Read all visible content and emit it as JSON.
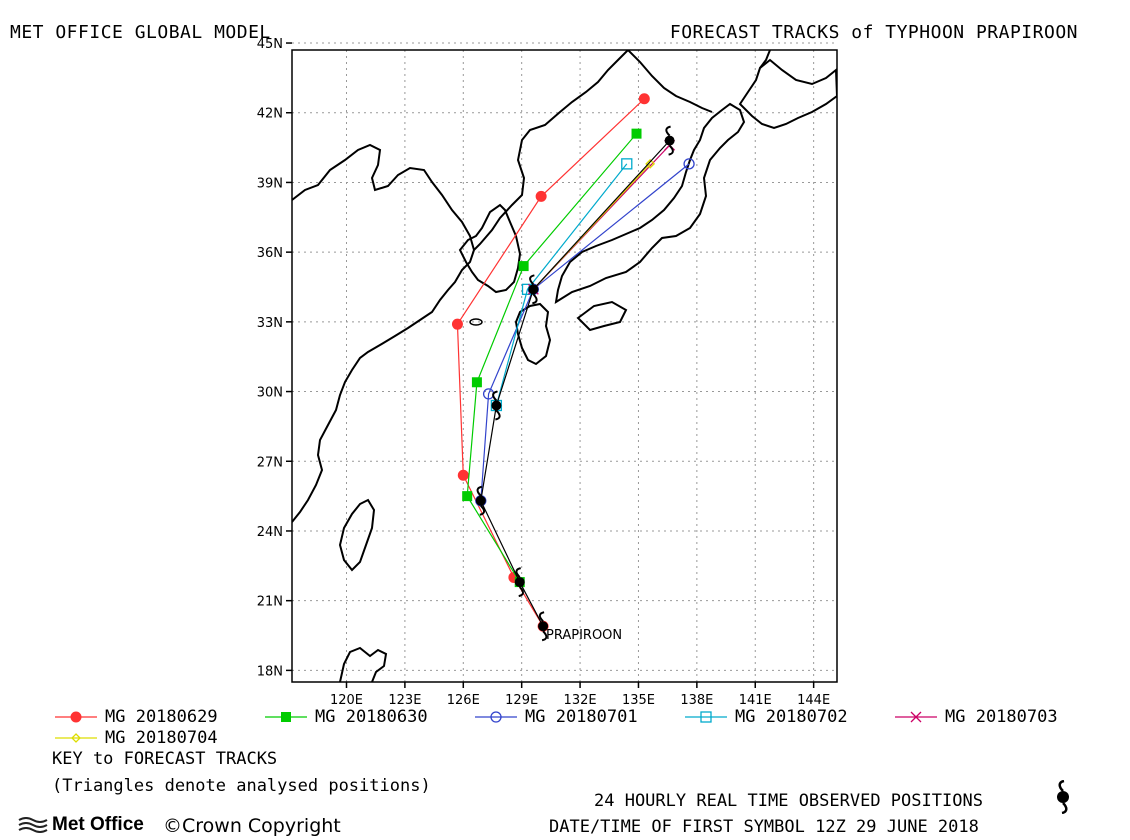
{
  "header": {
    "left_title": "MET OFFICE GLOBAL MODEL",
    "right_title": "FORECAST TRACKS of TYPHOON PRAPIROON"
  },
  "map": {
    "lat_range": [
      17.5,
      44.7
    ],
    "lon_range": [
      117.2,
      145.2
    ],
    "lat_ticks": [
      "18N",
      "21N",
      "24N",
      "27N",
      "30N",
      "33N",
      "36N",
      "39N",
      "42N",
      "45N"
    ],
    "lon_ticks": [
      "120E",
      "123E",
      "126E",
      "129E",
      "132E",
      "135E",
      "138E",
      "141E",
      "144E"
    ],
    "storm_label": "PRAPIROON",
    "grid": true
  },
  "tracks": [
    {
      "name": "MG 20180629",
      "color": "#ff3333",
      "marker": "filled-circle",
      "points": [
        [
          130.1,
          19.9
        ],
        [
          128.6,
          22.0
        ],
        [
          126.0,
          26.4
        ],
        [
          125.7,
          32.9
        ],
        [
          130.0,
          38.4
        ],
        [
          135.3,
          42.6
        ]
      ]
    },
    {
      "name": "MG 20180630",
      "color": "#00cc00",
      "marker": "filled-square",
      "points": [
        [
          128.9,
          21.8
        ],
        [
          126.2,
          25.5
        ],
        [
          126.7,
          30.4
        ],
        [
          129.1,
          35.4
        ],
        [
          134.9,
          41.1
        ]
      ]
    },
    {
      "name": "MG 20180701",
      "color": "#3344cc",
      "marker": "open-circle",
      "points": [
        [
          126.9,
          25.3
        ],
        [
          127.3,
          29.9
        ],
        [
          129.6,
          34.4
        ],
        [
          137.6,
          39.8
        ]
      ]
    },
    {
      "name": "MG 20180702",
      "color": "#00aacc",
      "marker": "open-square",
      "points": [
        [
          127.7,
          29.4
        ],
        [
          129.3,
          34.4
        ],
        [
          134.4,
          39.8
        ]
      ]
    },
    {
      "name": "MG 20180703",
      "color": "#cc0066",
      "marker": "cross",
      "points": [
        [
          129.6,
          34.4
        ],
        [
          136.6,
          40.6
        ]
      ]
    },
    {
      "name": "MG 20180704",
      "color": "#dddd00",
      "marker": "diamond",
      "points": [
        [
          129.6,
          34.4
        ],
        [
          135.6,
          39.8
        ]
      ]
    }
  ],
  "observed_positions": [
    [
      130.1,
      19.9
    ],
    [
      128.9,
      21.8
    ],
    [
      126.9,
      25.3
    ],
    [
      127.7,
      29.4
    ],
    [
      129.6,
      34.4
    ],
    [
      136.6,
      40.8
    ]
  ],
  "legend": {
    "key_title": "KEY to FORECAST TRACKS",
    "triangles_note": "(Triangles denote analysed positions)"
  },
  "footer": {
    "observed_label": "24 HOURLY REAL TIME OBSERVED POSITIONS",
    "first_symbol": "DATE/TIME OF FIRST SYMBOL 12Z 29 JUNE 2018",
    "logo_text": "Met Office",
    "copyright": "©Crown Copyright"
  }
}
